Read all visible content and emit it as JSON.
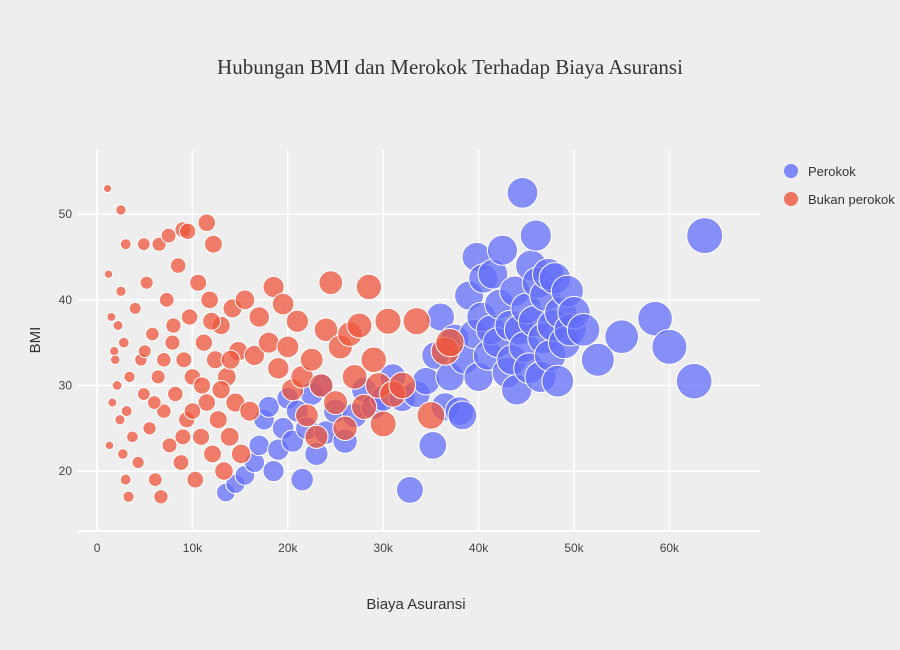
{
  "chart_data": {
    "type": "scatter",
    "title": "Hubungan BMI dan Merokok Terhadap Biaya Asuransi",
    "xlabel": "Biaya Asuransi",
    "ylabel": "BMI",
    "xlim": [
      -2000,
      69500
    ],
    "ylim": [
      13,
      57.5
    ],
    "x_ticks": [
      0,
      10000,
      20000,
      30000,
      40000,
      50000,
      60000
    ],
    "x_tick_labels": [
      "0",
      "10k",
      "20k",
      "30k",
      "40k",
      "50k",
      "60k"
    ],
    "y_ticks": [
      20,
      30,
      40,
      50
    ],
    "y_tick_labels": [
      "20",
      "30",
      "40",
      "50"
    ],
    "grid": true,
    "legend_position": "top-right",
    "marker_size_encodes": "Biaya Asuransi",
    "series": [
      {
        "name": "Perokok",
        "color": "#636efa",
        "points": [
          [
            13500,
            17.5
          ],
          [
            14500,
            18.5
          ],
          [
            15500,
            19.5
          ],
          [
            16500,
            21
          ],
          [
            17000,
            23
          ],
          [
            17500,
            26
          ],
          [
            18000,
            27.5
          ],
          [
            18500,
            20
          ],
          [
            19000,
            22.5
          ],
          [
            19500,
            25
          ],
          [
            20000,
            28.5
          ],
          [
            20500,
            23.5
          ],
          [
            21000,
            27
          ],
          [
            21500,
            19
          ],
          [
            22000,
            25
          ],
          [
            22500,
            29
          ],
          [
            23000,
            22
          ],
          [
            23500,
            30
          ],
          [
            24000,
            24.5
          ],
          [
            25000,
            27
          ],
          [
            26000,
            23.5
          ],
          [
            27000,
            26.5
          ],
          [
            28000,
            29.5
          ],
          [
            29000,
            27.5
          ],
          [
            30000,
            28.5
          ],
          [
            31000,
            31
          ],
          [
            32000,
            28.5
          ],
          [
            32800,
            17.8
          ],
          [
            33500,
            29
          ],
          [
            34500,
            30.5
          ],
          [
            35200,
            23
          ],
          [
            35500,
            33.5
          ],
          [
            36000,
            38
          ],
          [
            36500,
            27.5
          ],
          [
            37000,
            31
          ],
          [
            37500,
            35.5
          ],
          [
            38000,
            27
          ],
          [
            38300,
            26.5
          ],
          [
            38500,
            33
          ],
          [
            39000,
            40.5
          ],
          [
            39500,
            36
          ],
          [
            39800,
            45
          ],
          [
            40000,
            31
          ],
          [
            40300,
            38
          ],
          [
            40500,
            42.5
          ],
          [
            41000,
            33.5
          ],
          [
            41300,
            36.5
          ],
          [
            41500,
            43
          ],
          [
            42000,
            35
          ],
          [
            42200,
            39.5
          ],
          [
            42500,
            45.8
          ],
          [
            43000,
            31.5
          ],
          [
            43300,
            37
          ],
          [
            43500,
            33
          ],
          [
            43800,
            41
          ],
          [
            44000,
            29.5
          ],
          [
            44300,
            36.5
          ],
          [
            44600,
            52.5
          ],
          [
            44800,
            34.5
          ],
          [
            45000,
            39
          ],
          [
            45300,
            32
          ],
          [
            45500,
            44
          ],
          [
            45800,
            37.5
          ],
          [
            46000,
            47.5
          ],
          [
            46200,
            42
          ],
          [
            46500,
            31
          ],
          [
            46800,
            35.5
          ],
          [
            47000,
            40.5
          ],
          [
            47300,
            43
          ],
          [
            47500,
            33.5
          ],
          [
            47800,
            37
          ],
          [
            48000,
            42.5
          ],
          [
            48300,
            30.5
          ],
          [
            48600,
            38.5
          ],
          [
            49000,
            35
          ],
          [
            49300,
            41
          ],
          [
            49600,
            36.5
          ],
          [
            50000,
            38.5
          ],
          [
            51000,
            36.5
          ],
          [
            52500,
            33
          ],
          [
            55000,
            35.7
          ],
          [
            58500,
            37.8
          ],
          [
            60000,
            34.5
          ],
          [
            62600,
            30.5
          ],
          [
            63700,
            47.5
          ]
        ]
      },
      {
        "name": "Bukan perokok",
        "color": "#ef553b",
        "points": [
          [
            1100,
            53
          ],
          [
            2500,
            50.5
          ],
          [
            3000,
            46.5
          ],
          [
            4900,
            46.5
          ],
          [
            6500,
            46.5
          ],
          [
            7500,
            47.5
          ],
          [
            9000,
            48.2
          ],
          [
            9500,
            48
          ],
          [
            11500,
            49
          ],
          [
            12200,
            46.5
          ],
          [
            1200,
            43
          ],
          [
            1500,
            38
          ],
          [
            1800,
            34
          ],
          [
            2100,
            30
          ],
          [
            2400,
            26
          ],
          [
            2700,
            22
          ],
          [
            3000,
            19
          ],
          [
            3300,
            17
          ],
          [
            1300,
            23
          ],
          [
            1600,
            28
          ],
          [
            1900,
            33
          ],
          [
            2200,
            37
          ],
          [
            2500,
            41
          ],
          [
            2800,
            35
          ],
          [
            3100,
            27
          ],
          [
            3400,
            31
          ],
          [
            3700,
            24
          ],
          [
            4000,
            39
          ],
          [
            4300,
            21
          ],
          [
            4600,
            33
          ],
          [
            4900,
            29
          ],
          [
            5200,
            42
          ],
          [
            5500,
            25
          ],
          [
            5800,
            36
          ],
          [
            6100,
            19
          ],
          [
            6400,
            31
          ],
          [
            6700,
            17
          ],
          [
            7000,
            27
          ],
          [
            7300,
            40
          ],
          [
            7600,
            23
          ],
          [
            7900,
            35
          ],
          [
            8200,
            29
          ],
          [
            8500,
            44
          ],
          [
            8800,
            21
          ],
          [
            9100,
            33
          ],
          [
            9400,
            26
          ],
          [
            9700,
            38
          ],
          [
            10000,
            31
          ],
          [
            10300,
            19
          ],
          [
            10600,
            42
          ],
          [
            10900,
            24
          ],
          [
            11200,
            35
          ],
          [
            11500,
            28
          ],
          [
            11800,
            40
          ],
          [
            12100,
            22
          ],
          [
            12400,
            33
          ],
          [
            12700,
            26
          ],
          [
            13000,
            37
          ],
          [
            13300,
            20
          ],
          [
            13600,
            31
          ],
          [
            13900,
            24
          ],
          [
            14200,
            39
          ],
          [
            14500,
            28
          ],
          [
            14800,
            34
          ],
          [
            15100,
            22
          ],
          [
            5000,
            34
          ],
          [
            6000,
            28
          ],
          [
            7000,
            33
          ],
          [
            8000,
            37
          ],
          [
            9000,
            24
          ],
          [
            10000,
            27
          ],
          [
            11000,
            30
          ],
          [
            12000,
            37.5
          ],
          [
            13000,
            29.5
          ],
          [
            14000,
            33
          ],
          [
            15500,
            40
          ],
          [
            16000,
            27
          ],
          [
            16500,
            33.5
          ],
          [
            17000,
            38
          ],
          [
            18000,
            35
          ],
          [
            18500,
            41.5
          ],
          [
            19000,
            32
          ],
          [
            19500,
            39.5
          ],
          [
            20000,
            34.5
          ],
          [
            20500,
            29.5
          ],
          [
            21000,
            37.5
          ],
          [
            21500,
            31
          ],
          [
            22000,
            26.5
          ],
          [
            22500,
            33
          ],
          [
            23000,
            24
          ],
          [
            23500,
            30
          ],
          [
            24000,
            36.5
          ],
          [
            24500,
            42
          ],
          [
            25000,
            28
          ],
          [
            25500,
            34.5
          ],
          [
            26000,
            25
          ],
          [
            26500,
            36
          ],
          [
            27000,
            31
          ],
          [
            27500,
            37
          ],
          [
            28000,
            27.5
          ],
          [
            28500,
            41.5
          ],
          [
            29000,
            33
          ],
          [
            29500,
            30
          ],
          [
            30000,
            25.5
          ],
          [
            30500,
            37.5
          ],
          [
            31000,
            29
          ],
          [
            32000,
            30
          ],
          [
            33500,
            37.5
          ],
          [
            35000,
            26.5
          ],
          [
            36500,
            34
          ],
          [
            37000,
            35
          ]
        ]
      }
    ]
  }
}
